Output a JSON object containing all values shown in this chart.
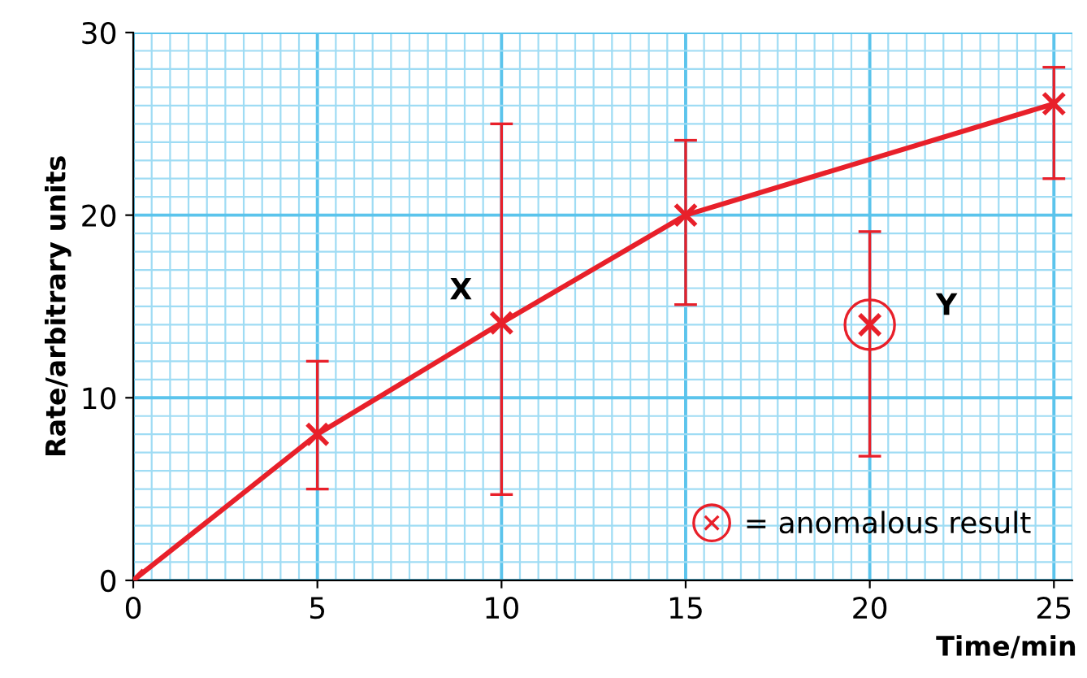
{
  "chart_data": {
    "type": "line",
    "xlabel": "Time/min",
    "ylabel": "Rate/arbitrary units",
    "xlim": [
      0,
      25.5
    ],
    "xticks": [
      0,
      {
        "value": 0.5,
        "label": null
      },
      {
        "value": 1,
        "label": null
      },
      {
        "value": 1.5,
        "label": null
      },
      {
        "value": 2,
        "label": null
      },
      {
        "value": 2.5,
        "label": null
      },
      {
        "value": 3,
        "label": null
      },
      {
        "value": 3.5,
        "label": null
      },
      {
        "value": 4,
        "label": null
      },
      {
        "value": 4.5,
        "label": null
      },
      5,
      {
        "value": 5.5,
        "label": null
      },
      {
        "value": 6,
        "label": null
      },
      {
        "value": 6.5,
        "label": null
      },
      {
        "value": 7,
        "label": null
      },
      {
        "value": 7.5,
        "label": null
      },
      {
        "value": 8,
        "label": null
      },
      {
        "value": 8.5,
        "label": null
      },
      {
        "value": 9,
        "label": null
      },
      {
        "value": 9.5,
        "label": null
      },
      10,
      {
        "value": 10.5,
        "label": null
      },
      {
        "value": 11,
        "label": null
      },
      {
        "value": 11.5,
        "label": null
      },
      {
        "value": 12,
        "label": null
      },
      {
        "value": 12.5,
        "label": null
      },
      {
        "value": 13,
        "label": null
      },
      {
        "value": 13.5,
        "label": null
      },
      {
        "value": 14,
        "label": null
      },
      {
        "value": 14.5,
        "label": null
      },
      15,
      {
        "value": 15.5,
        "label": null
      },
      {
        "value": 16,
        "label": null
      },
      {
        "value": 16.5,
        "label": null
      },
      {
        "value": 17,
        "label": null
      },
      {
        "value": 17.5,
        "label": null
      },
      {
        "value": 18,
        "label": null
      },
      {
        "value": 18.5,
        "label": null
      },
      {
        "value": 19,
        "label": null
      },
      {
        "value": 19.5,
        "label": null
      },
      20,
      {
        "value": 20.5,
        "label": null
      },
      {
        "value": 21,
        "label": null
      },
      {
        "value": 21.5,
        "label": null
      },
      {
        "value": 22,
        "label": null
      },
      {
        "value": 22.5,
        "label": null
      },
      {
        "value": 23,
        "label": null
      },
      {
        "value": 23.5,
        "label": null
      },
      {
        "value": 24,
        "label": null
      },
      {
        "value": 24.5,
        "label": null
      },
      25,
      {
        "value": 25.5,
        "label": null
      }
    ],
    "ylim": [
      0,
      30
    ],
    "yticks": [
      0,
      {
        "value": 1,
        "label": null
      },
      {
        "value": 2,
        "label": null
      },
      {
        "value": 3,
        "label": null
      },
      {
        "value": 4,
        "label": null
      },
      {
        "value": 5,
        "label": null
      },
      {
        "value": 6,
        "label": null
      },
      {
        "value": 7,
        "label": null
      },
      {
        "value": 8,
        "label": null
      },
      {
        "value": 9,
        "label": null
      },
      10,
      {
        "value": 11,
        "label": null
      },
      {
        "value": 12,
        "label": null
      },
      {
        "value": 13,
        "label": null
      },
      {
        "value": 14,
        "label": null
      },
      {
        "value": 15,
        "label": null
      },
      {
        "value": 16,
        "label": null
      },
      {
        "value": 17,
        "label": null
      },
      {
        "value": 18,
        "label": null
      },
      {
        "value": 19,
        "label": null
      },
      20,
      {
        "value": 21,
        "label": null
      },
      {
        "value": 22,
        "label": null
      },
      {
        "value": 23,
        "label": null
      },
      {
        "value": 24,
        "label": null
      },
      {
        "value": 25,
        "label": null
      },
      {
        "value": 26,
        "label": null
      },
      {
        "value": 27,
        "label": null
      },
      {
        "value": 28,
        "label": null
      },
      {
        "value": 29,
        "label": null
      },
      30
    ],
    "grid": true,
    "marker": "cross",
    "legend": "bottom right",
    "series": [
      {
        "color": "#e8202a",
        "x": [
          0,
          5,
          10,
          15,
          25
        ],
        "values": [
          0,
          8,
          14.1,
          20,
          26.1
        ],
        "errors": [
          null,
          [
            5.0,
            12.0
          ],
          [
            4.7,
            25.0
          ],
          [
            15.1,
            24.1
          ],
          [
            22.0,
            28.1
          ]
        ]
      },
      {
        "name": "= anomalous result",
        "type": "scatter",
        "marker": "circle",
        "color": "#e8202a",
        "x": [
          20
        ],
        "values": [
          14
        ],
        "errors": [
          [
            6.8,
            19.1
          ]
        ]
      }
    ],
    "annotations": [
      {
        "text": "X",
        "x": 10,
        "y": 14.1
      },
      {
        "text": "Y",
        "x": 20,
        "y": 14
      }
    ]
  }
}
